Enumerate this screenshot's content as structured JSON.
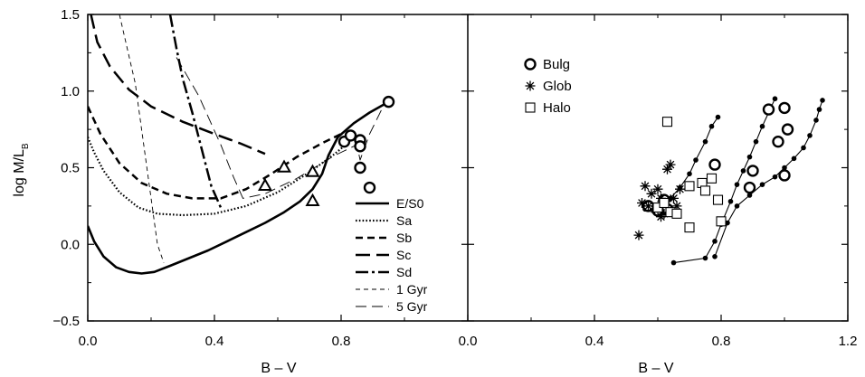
{
  "chart_data": [
    {
      "type": "line",
      "panel": "left",
      "xlabel": "B – V",
      "ylabel": "log M/L",
      "ylabel_subscript": "B",
      "xlim": [
        0.0,
        1.2
      ],
      "ylim": [
        -0.5,
        1.5
      ],
      "x_ticks": [
        "0.0",
        "0.4",
        "0.8"
      ],
      "y_ticks": [
        "−0.5",
        "0.0",
        "0.5",
        "1.0",
        "1.5"
      ],
      "y_tick_values": [
        -0.5,
        0.0,
        0.5,
        1.0,
        1.5
      ],
      "x_tick_values": [
        0.0,
        0.4,
        0.8
      ],
      "grid": false,
      "legend_position": "bottom-right",
      "series": [
        {
          "name": "E/S0",
          "style": "solid-thick",
          "points": [
            [
              0.0,
              0.12
            ],
            [
              0.02,
              0.02
            ],
            [
              0.05,
              -0.08
            ],
            [
              0.09,
              -0.15
            ],
            [
              0.13,
              -0.18
            ],
            [
              0.17,
              -0.19
            ],
            [
              0.21,
              -0.18
            ],
            [
              0.26,
              -0.14
            ],
            [
              0.32,
              -0.09
            ],
            [
              0.38,
              -0.04
            ],
            [
              0.44,
              0.02
            ],
            [
              0.5,
              0.08
            ],
            [
              0.56,
              0.14
            ],
            [
              0.62,
              0.21
            ],
            [
              0.67,
              0.28
            ],
            [
              0.71,
              0.36
            ],
            [
              0.74,
              0.46
            ],
            [
              0.76,
              0.58
            ],
            [
              0.79,
              0.7
            ],
            [
              0.84,
              0.79
            ],
            [
              0.89,
              0.86
            ],
            [
              0.95,
              0.93
            ]
          ]
        },
        {
          "name": "Sa",
          "style": "dotted",
          "points": [
            [
              0.0,
              0.7
            ],
            [
              0.02,
              0.6
            ],
            [
              0.05,
              0.48
            ],
            [
              0.1,
              0.34
            ],
            [
              0.16,
              0.24
            ],
            [
              0.22,
              0.2
            ],
            [
              0.3,
              0.19
            ],
            [
              0.4,
              0.2
            ],
            [
              0.5,
              0.25
            ],
            [
              0.6,
              0.34
            ],
            [
              0.7,
              0.47
            ],
            [
              0.78,
              0.59
            ],
            [
              0.82,
              0.66
            ]
          ]
        },
        {
          "name": "Sb",
          "style": "dashed",
          "points": [
            [
              0.0,
              0.9
            ],
            [
              0.04,
              0.72
            ],
            [
              0.1,
              0.53
            ],
            [
              0.17,
              0.4
            ],
            [
              0.25,
              0.33
            ],
            [
              0.33,
              0.3
            ],
            [
              0.42,
              0.3
            ],
            [
              0.5,
              0.36
            ],
            [
              0.58,
              0.46
            ],
            [
              0.66,
              0.57
            ],
            [
              0.74,
              0.66
            ],
            [
              0.8,
              0.72
            ]
          ]
        },
        {
          "name": "Sc",
          "style": "long-dashed",
          "points": [
            [
              0.01,
              1.5
            ],
            [
              0.03,
              1.32
            ],
            [
              0.07,
              1.16
            ],
            [
              0.13,
              1.01
            ],
            [
              0.2,
              0.9
            ],
            [
              0.3,
              0.8
            ],
            [
              0.4,
              0.72
            ],
            [
              0.48,
              0.66
            ],
            [
              0.56,
              0.59
            ]
          ]
        },
        {
          "name": "Sd",
          "style": "dash-dot",
          "points": [
            [
              0.26,
              1.5
            ],
            [
              0.28,
              1.28
            ],
            [
              0.3,
              1.08
            ],
            [
              0.33,
              0.86
            ],
            [
              0.36,
              0.62
            ],
            [
              0.39,
              0.38
            ],
            [
              0.42,
              0.24
            ]
          ]
        },
        {
          "name": "1 Gyr",
          "style": "thin-dashed",
          "points": [
            [
              0.1,
              1.5
            ],
            [
              0.15,
              1.05
            ],
            [
              0.19,
              0.45
            ],
            [
              0.22,
              0.0
            ],
            [
              0.24,
              -0.12
            ]
          ]
        },
        {
          "name": "5 Gyr",
          "style": "thin-long-dashed",
          "points": [
            [
              0.28,
              1.22
            ],
            [
              0.35,
              0.97
            ],
            [
              0.42,
              0.65
            ],
            [
              0.46,
              0.44
            ],
            [
              0.49,
              0.3
            ],
            [
              0.56,
              0.33
            ],
            [
              0.66,
              0.43
            ],
            [
              0.78,
              0.58
            ],
            [
              0.85,
              0.65
            ],
            [
              0.86,
              0.55
            ],
            [
              0.89,
              0.72
            ],
            [
              0.94,
              0.93
            ]
          ]
        }
      ],
      "markers": [
        {
          "shape": "circle",
          "points": [
            [
              0.81,
              0.67
            ],
            [
              0.83,
              0.71
            ],
            [
              0.86,
              0.68
            ],
            [
              0.86,
              0.64
            ],
            [
              0.86,
              0.5
            ],
            [
              0.89,
              0.37
            ],
            [
              0.95,
              0.93
            ]
          ]
        },
        {
          "shape": "triangle",
          "points": [
            [
              0.56,
              0.38
            ],
            [
              0.62,
              0.5
            ],
            [
              0.71,
              0.47
            ],
            [
              0.71,
              0.28
            ]
          ]
        }
      ]
    },
    {
      "type": "scatter",
      "panel": "right",
      "xlabel": "B – V",
      "ylabel": "",
      "xlim": [
        0.0,
        1.2
      ],
      "ylim": [
        -0.5,
        1.5
      ],
      "x_ticks": [
        "0.0",
        "0.4",
        "0.8",
        "1.2"
      ],
      "x_tick_values": [
        0.0,
        0.4,
        0.8,
        1.2
      ],
      "grid": false,
      "legend_position": "top-left",
      "series": [
        {
          "name": "Bulg",
          "marker": "circle",
          "points": [
            [
              0.57,
              0.25
            ],
            [
              0.6,
              0.22
            ],
            [
              0.62,
              0.29
            ],
            [
              0.63,
              0.23
            ],
            [
              0.78,
              0.52
            ],
            [
              0.89,
              0.37
            ],
            [
              0.9,
              0.48
            ],
            [
              0.95,
              0.88
            ],
            [
              0.98,
              0.67
            ],
            [
              1.0,
              0.89
            ],
            [
              1.0,
              0.45
            ],
            [
              1.01,
              0.75
            ]
          ]
        },
        {
          "name": "Glob",
          "marker": "asterisk",
          "points": [
            [
              0.54,
              0.06
            ],
            [
              0.55,
              0.27
            ],
            [
              0.56,
              0.38
            ],
            [
              0.57,
              0.25
            ],
            [
              0.58,
              0.33
            ],
            [
              0.59,
              0.23
            ],
            [
              0.6,
              0.36
            ],
            [
              0.61,
              0.18
            ],
            [
              0.61,
              0.3
            ],
            [
              0.62,
              0.2
            ],
            [
              0.63,
              0.49
            ],
            [
              0.64,
              0.52
            ],
            [
              0.65,
              0.3
            ],
            [
              0.66,
              0.25
            ],
            [
              0.67,
              0.36
            ]
          ]
        },
        {
          "name": "Halo",
          "marker": "square",
          "points": [
            [
              0.6,
              0.24
            ],
            [
              0.62,
              0.27
            ],
            [
              0.63,
              0.8
            ],
            [
              0.64,
              0.21
            ],
            [
              0.66,
              0.2
            ],
            [
              0.7,
              0.11
            ],
            [
              0.7,
              0.38
            ],
            [
              0.74,
              0.4
            ],
            [
              0.75,
              0.35
            ],
            [
              0.77,
              0.43
            ],
            [
              0.79,
              0.29
            ],
            [
              0.8,
              0.15
            ]
          ]
        }
      ],
      "tracks": [
        [
          [
            0.56,
            0.23
          ],
          [
            0.6,
            0.24
          ],
          [
            0.64,
            0.3
          ],
          [
            0.67,
            0.37
          ],
          [
            0.7,
            0.46
          ],
          [
            0.72,
            0.55
          ],
          [
            0.75,
            0.67
          ],
          [
            0.77,
            0.77
          ],
          [
            0.79,
            0.83
          ]
        ],
        [
          [
            0.65,
            -0.12
          ],
          [
            0.75,
            -0.09
          ],
          [
            0.78,
            0.02
          ],
          [
            0.8,
            0.13
          ],
          [
            0.83,
            0.28
          ],
          [
            0.85,
            0.39
          ],
          [
            0.87,
            0.48
          ],
          [
            0.89,
            0.57
          ],
          [
            0.91,
            0.67
          ],
          [
            0.93,
            0.77
          ],
          [
            0.95,
            0.86
          ],
          [
            0.97,
            0.95
          ]
        ],
        [
          [
            0.78,
            -0.08
          ],
          [
            0.82,
            0.14
          ],
          [
            0.85,
            0.25
          ],
          [
            0.89,
            0.32
          ],
          [
            0.93,
            0.39
          ],
          [
            0.97,
            0.44
          ],
          [
            1.0,
            0.5
          ],
          [
            1.03,
            0.56
          ],
          [
            1.06,
            0.63
          ],
          [
            1.08,
            0.71
          ],
          [
            1.1,
            0.81
          ],
          [
            1.11,
            0.88
          ],
          [
            1.12,
            0.94
          ]
        ]
      ]
    }
  ]
}
